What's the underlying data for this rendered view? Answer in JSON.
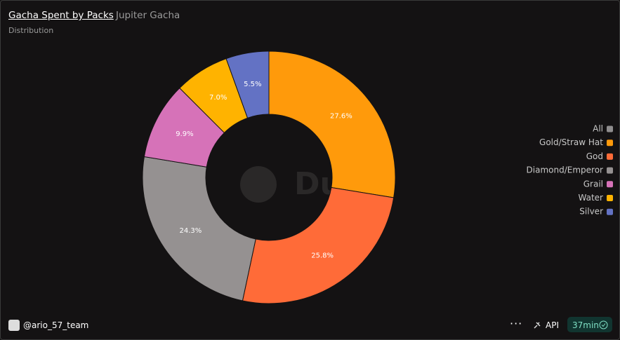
{
  "header": {
    "title": "Gacha Spent by Packs",
    "subtitle": "Jupiter Gacha"
  },
  "chart_data": {
    "type": "pie",
    "donut": true,
    "title": "Distribution",
    "categories": [
      "All",
      "Gold/Straw Hat",
      "God",
      "Diamond/Emperor",
      "Grail",
      "Water",
      "Silver"
    ],
    "values": [
      null,
      27.6,
      25.8,
      24.3,
      9.9,
      7.0,
      5.5
    ],
    "value_labels": [
      null,
      "27.6%",
      "25.8%",
      "24.3%",
      "9.9%",
      "7.0%",
      "5.5%"
    ],
    "colors": [
      "#8f8d8e",
      "#ff9a0b",
      "#ff6b38",
      "#959191",
      "#d672b8",
      "#ffb300",
      "#6372c4"
    ],
    "legend": "right",
    "watermark": "Dune"
  },
  "footer": {
    "user": "@ario_57_team",
    "api": "API",
    "age": "37min"
  }
}
